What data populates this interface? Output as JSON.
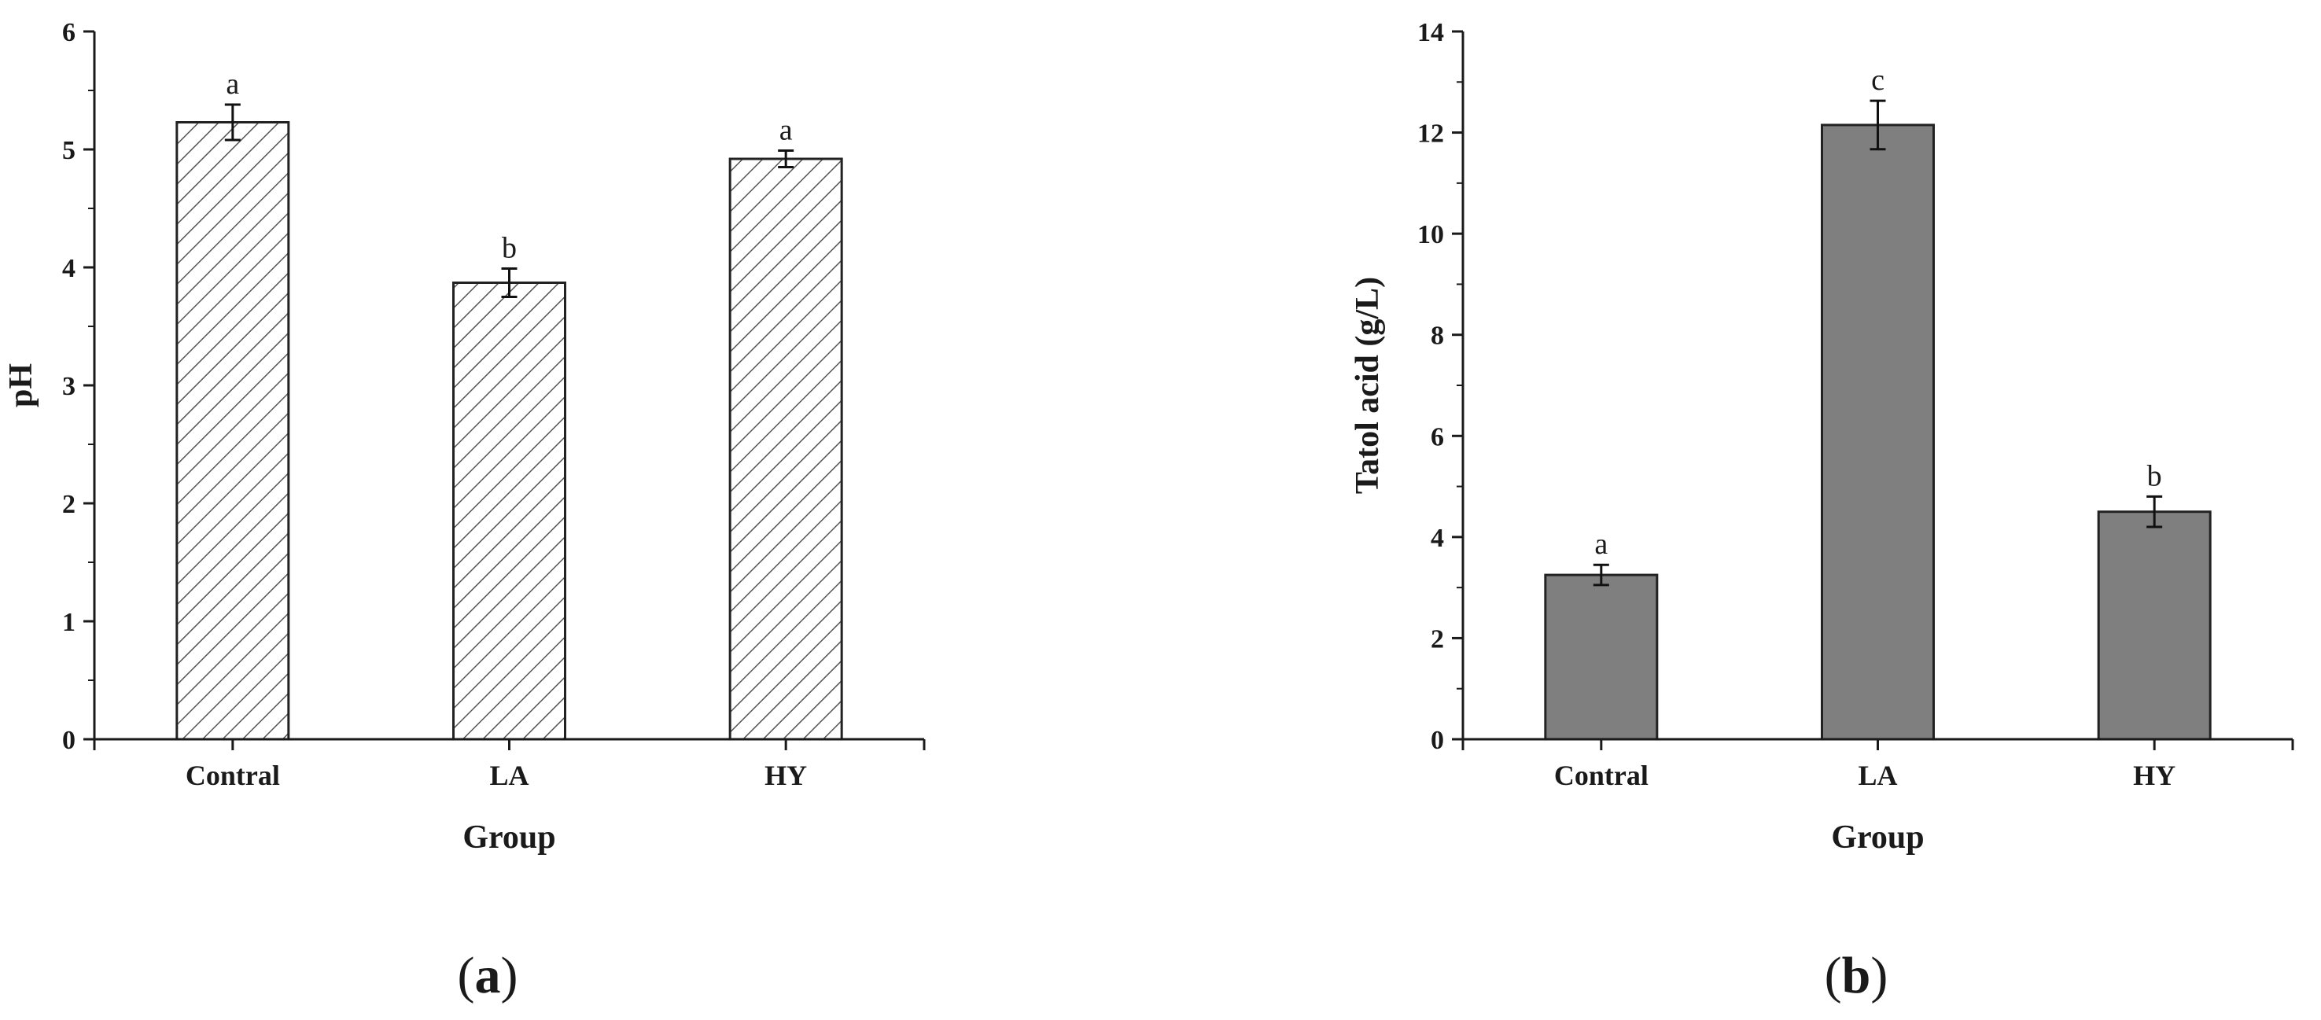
{
  "chart_data": [
    {
      "type": "bar",
      "panel": "a",
      "categories": [
        "Contral",
        "LA",
        "HY"
      ],
      "values": [
        5.23,
        3.87,
        4.92
      ],
      "errors": [
        0.15,
        0.12,
        0.07
      ],
      "significance": [
        "a",
        "b",
        "a"
      ],
      "xlabel": "Group",
      "ylabel": "pH",
      "ylim": [
        0,
        6
      ],
      "yticks": [
        0,
        1,
        2,
        3,
        4,
        5,
        6
      ],
      "fill": "hatched",
      "colors": {
        "bar_fill": "#ffffff",
        "hatch": "#555555",
        "bar_edge": "#222222",
        "axis": "#1a1a1a"
      },
      "grid": false
    },
    {
      "type": "bar",
      "panel": "b",
      "categories": [
        "Contral",
        "LA",
        "HY"
      ],
      "values": [
        3.25,
        12.15,
        4.5
      ],
      "errors": [
        0.2,
        0.48,
        0.3
      ],
      "significance": [
        "a",
        "c",
        "b"
      ],
      "xlabel": "Group",
      "ylabel": "Tatol acid (g/L)",
      "ylim": [
        0,
        14
      ],
      "yticks": [
        0,
        2,
        4,
        6,
        8,
        10,
        12,
        14
      ],
      "fill": "solid",
      "colors": {
        "bar_fill": "#7f7f7f",
        "bar_edge": "#222222",
        "axis": "#1a1a1a"
      },
      "grid": false
    }
  ],
  "captions": [
    {
      "open": "(",
      "letter": "a",
      "close": ")"
    },
    {
      "open": "(",
      "letter": "b",
      "close": ")"
    }
  ]
}
